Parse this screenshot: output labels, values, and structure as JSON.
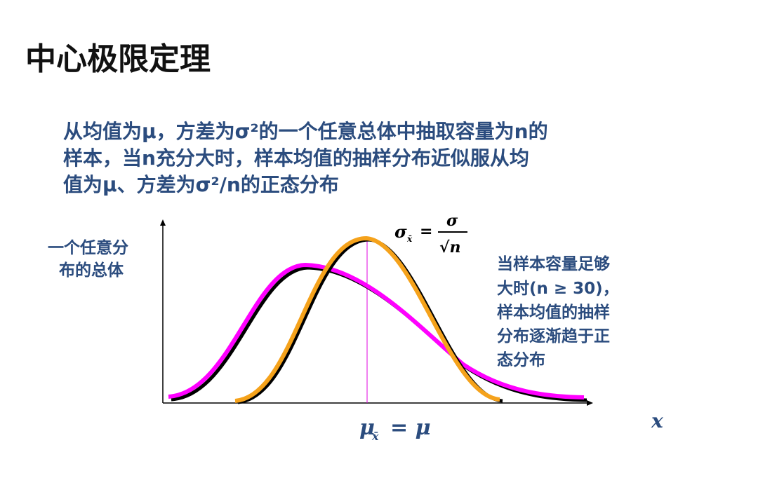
{
  "title": "中心极限定理",
  "statement": {
    "lines": [
      "从均值为μ，方差为σ²的一个任意总体中抽取容量为n的",
      "样本，当n充分大时，样本均值的抽样分布近似服从均",
      "值为μ、方差为σ²/n的正态分布"
    ]
  },
  "population_label": {
    "lines": [
      "一个任意分",
      "布的总体"
    ]
  },
  "sd_formula": {
    "lhs": "σ",
    "sub": "x̄",
    "eq": "=",
    "num": "σ",
    "den": "√n"
  },
  "mean_formula": {
    "lhs": "μ",
    "sub": "x̄",
    "rhs": "= μ"
  },
  "axis_label": "x",
  "note": {
    "lines": [
      "当样本容量足够",
      "大时(n ≥ 30)，",
      "样本均值的抽样",
      "分布逐渐趋于正",
      "态分布"
    ]
  }
}
